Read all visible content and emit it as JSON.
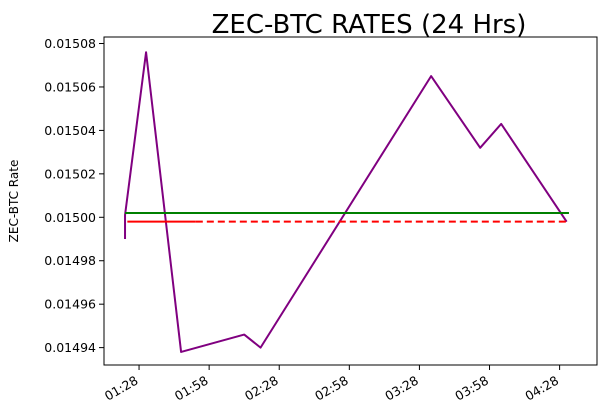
{
  "chart_data": {
    "type": "line",
    "title": "ZEC-BTC RATES (24 Hrs)",
    "xlabel": "",
    "ylabel": "ZEC-BTC Rate",
    "x_ticks": [
      "01:28",
      "01:58",
      "02:28",
      "02:58",
      "03:28",
      "03:58",
      "04:28"
    ],
    "x_ticks_rotated_deg": 30,
    "ylim": [
      0.014932,
      0.015083
    ],
    "y_ticks": [
      "0.01494",
      "0.01496",
      "0.01498",
      "0.01500",
      "0.01502",
      "0.01504",
      "0.01506",
      "0.01508"
    ],
    "y_tick_values": [
      0.01494,
      0.01496,
      0.01498,
      0.015,
      0.01502,
      0.01504,
      0.01506,
      0.01508
    ],
    "grid": false,
    "legend": "none",
    "series": [
      {
        "role": "rate",
        "color": "#800080",
        "style": "solid",
        "points": [
          {
            "x": "01:22",
            "y": 0.01499
          },
          {
            "x": "01:22",
            "y": 0.015001
          },
          {
            "x": "01:22",
            "y": 0.014993
          },
          {
            "x": "01:22",
            "y": 0.015001
          },
          {
            "x": "01:31",
            "y": 0.015076
          },
          {
            "x": "01:46",
            "y": 0.014938
          },
          {
            "x": "02:13",
            "y": 0.014946
          },
          {
            "x": "02:20",
            "y": 0.01494
          },
          {
            "x": "03:33",
            "y": 0.015065
          },
          {
            "x": "03:54",
            "y": 0.015032
          },
          {
            "x": "04:03",
            "y": 0.015043
          },
          {
            "x": "04:31",
            "y": 0.014998
          }
        ]
      },
      {
        "role": "mean",
        "color": "#008000",
        "style": "solid",
        "points": [
          {
            "x": "01:22",
            "y": 0.015002
          },
          {
            "x": "04:32",
            "y": 0.015002
          }
        ]
      },
      {
        "role": "latest",
        "color": "#ff0000",
        "style": "solid-then-dashed",
        "points": [
          {
            "x": "01:23",
            "y": 0.014998
          },
          {
            "x": "04:32",
            "y": 0.014998
          }
        ]
      }
    ]
  }
}
